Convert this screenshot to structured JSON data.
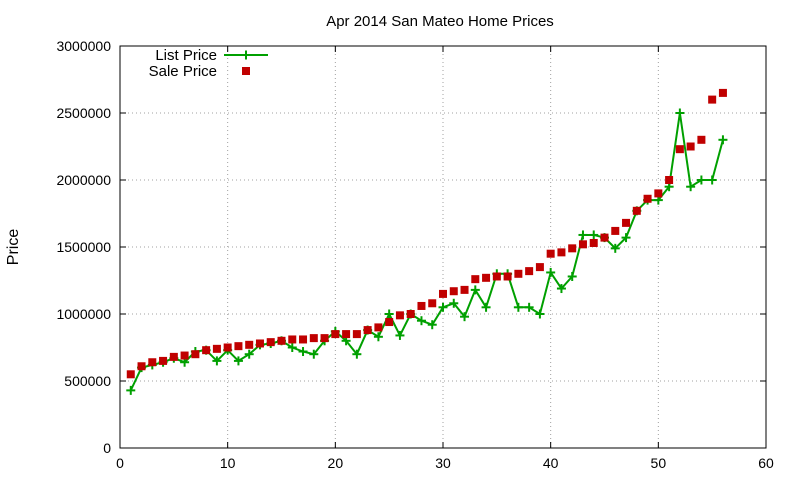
{
  "chart_data": {
    "type": "line",
    "title": "Apr 2014 San Mateo Home Prices",
    "xlabel": "",
    "ylabel": "Price",
    "xlim": [
      0,
      60
    ],
    "ylim": [
      0,
      3000000
    ],
    "x_ticks": [
      "0",
      "10",
      "20",
      "30",
      "40",
      "50",
      "60"
    ],
    "y_ticks": [
      "0",
      "500000",
      "1000000",
      "1500000",
      "2000000",
      "2500000",
      "3000000"
    ],
    "grid": true,
    "legend_position": "top-left",
    "series": [
      {
        "name": "List Price",
        "style": "line-plus",
        "color": "#00a000",
        "x": [
          1,
          2,
          3,
          4,
          5,
          6,
          7,
          8,
          9,
          10,
          11,
          12,
          13,
          14,
          15,
          16,
          17,
          18,
          19,
          20,
          21,
          22,
          23,
          24,
          25,
          26,
          27,
          28,
          29,
          30,
          31,
          32,
          33,
          34,
          35,
          36,
          37,
          38,
          39,
          40,
          41,
          42,
          43,
          44,
          45,
          46,
          47,
          48,
          49,
          50,
          51,
          52,
          53,
          54,
          55,
          56
        ],
        "values": [
          430000,
          600000,
          620000,
          640000,
          670000,
          640000,
          720000,
          730000,
          650000,
          730000,
          650000,
          700000,
          770000,
          780000,
          800000,
          750000,
          720000,
          700000,
          800000,
          870000,
          800000,
          700000,
          880000,
          830000,
          1000000,
          840000,
          1000000,
          950000,
          920000,
          1050000,
          1080000,
          980000,
          1180000,
          1050000,
          1300000,
          1300000,
          1050000,
          1050000,
          1000000,
          1310000,
          1190000,
          1280000,
          1590000,
          1590000,
          1570000,
          1490000,
          1570000,
          1770000,
          1850000,
          1850000,
          1950000,
          2500000,
          1950000,
          2000000,
          2000000,
          2300000
        ]
      },
      {
        "name": "Sale Price",
        "style": "points-square",
        "color": "#c00000",
        "x": [
          1,
          2,
          3,
          4,
          5,
          6,
          7,
          8,
          9,
          10,
          11,
          12,
          13,
          14,
          15,
          16,
          17,
          18,
          19,
          20,
          21,
          22,
          23,
          24,
          25,
          26,
          27,
          28,
          29,
          30,
          31,
          32,
          33,
          34,
          35,
          36,
          37,
          38,
          39,
          40,
          41,
          42,
          43,
          44,
          45,
          46,
          47,
          48,
          49,
          50,
          51,
          52,
          53,
          54,
          55,
          56
        ],
        "values": [
          550000,
          610000,
          640000,
          650000,
          680000,
          690000,
          700000,
          730000,
          740000,
          750000,
          760000,
          770000,
          780000,
          790000,
          800000,
          810000,
          810000,
          820000,
          820000,
          850000,
          850000,
          850000,
          880000,
          900000,
          940000,
          990000,
          1000000,
          1060000,
          1080000,
          1150000,
          1170000,
          1180000,
          1260000,
          1270000,
          1280000,
          1280000,
          1300000,
          1320000,
          1350000,
          1450000,
          1460000,
          1490000,
          1520000,
          1530000,
          1570000,
          1620000,
          1680000,
          1770000,
          1860000,
          1900000,
          2000000,
          2230000,
          2250000,
          2300000,
          2600000,
          2650000
        ]
      }
    ]
  }
}
